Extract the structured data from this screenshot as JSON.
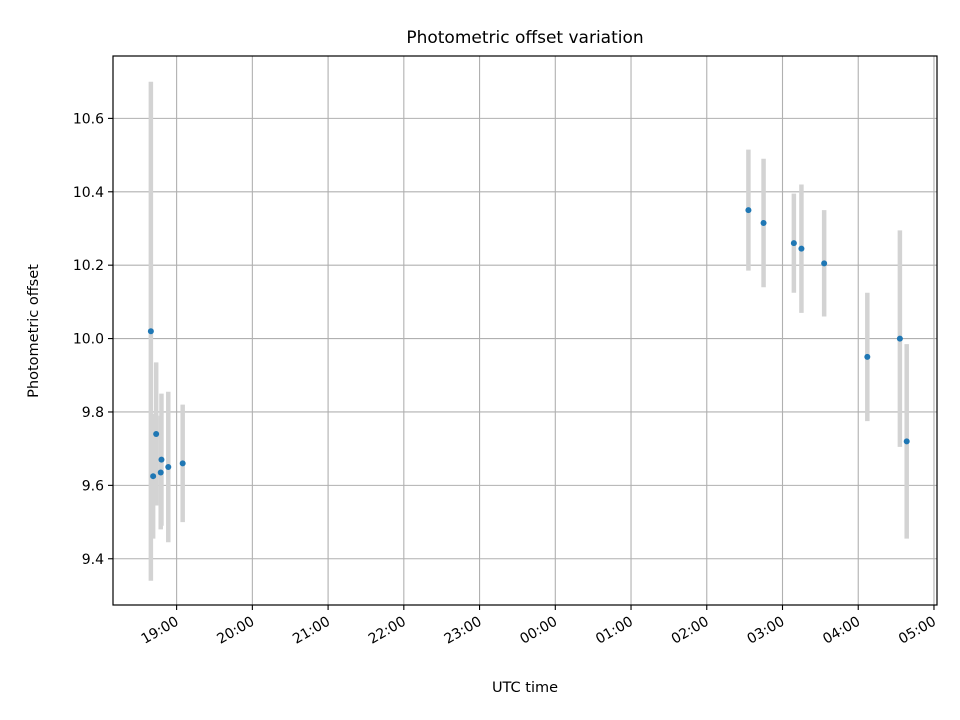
{
  "chart_data": {
    "type": "scatter",
    "title": "Photometric offset variation",
    "xlabel": "UTC time",
    "ylabel": "Photometric offset",
    "x_unit": "hours after 19:00 UTC (times past midnight continue beyond 5)",
    "xlim": [
      -0.84,
      10.04
    ],
    "ylim": [
      9.274,
      10.77
    ],
    "x_ticks": [
      {
        "value": 0,
        "label": "19:00"
      },
      {
        "value": 1,
        "label": "20:00"
      },
      {
        "value": 2,
        "label": "21:00"
      },
      {
        "value": 3,
        "label": "22:00"
      },
      {
        "value": 4,
        "label": "23:00"
      },
      {
        "value": 5,
        "label": "00:00"
      },
      {
        "value": 6,
        "label": "01:00"
      },
      {
        "value": 7,
        "label": "02:00"
      },
      {
        "value": 8,
        "label": "03:00"
      },
      {
        "value": 9,
        "label": "04:00"
      },
      {
        "value": 10,
        "label": "05:00"
      }
    ],
    "y_ticks": [
      {
        "value": 9.4,
        "label": "9.4"
      },
      {
        "value": 9.6,
        "label": "9.6"
      },
      {
        "value": 9.8,
        "label": "9.8"
      },
      {
        "value": 10.0,
        "label": "10.0"
      },
      {
        "value": 10.2,
        "label": "10.2"
      },
      {
        "value": 10.4,
        "label": "10.4"
      },
      {
        "value": 10.6,
        "label": "10.6"
      }
    ],
    "grid": true,
    "marker_color": "#1f77b4",
    "errorbar_color": "#d3d3d3",
    "points": [
      {
        "x": -0.34,
        "y": 10.02,
        "err": 0.68
      },
      {
        "x": -0.31,
        "y": 9.625,
        "err": 0.17
      },
      {
        "x": -0.27,
        "y": 9.74,
        "err": 0.195
      },
      {
        "x": -0.2,
        "y": 9.67,
        "err": 0.18
      },
      {
        "x": -0.21,
        "y": 9.635,
        "err": 0.155
      },
      {
        "x": -0.11,
        "y": 9.65,
        "err": 0.205
      },
      {
        "x": 0.08,
        "y": 9.66,
        "err": 0.16
      },
      {
        "x": 7.55,
        "y": 10.35,
        "err": 0.165
      },
      {
        "x": 7.75,
        "y": 10.315,
        "err": 0.175
      },
      {
        "x": 8.15,
        "y": 10.26,
        "err": 0.135
      },
      {
        "x": 8.25,
        "y": 10.245,
        "err": 0.175
      },
      {
        "x": 8.55,
        "y": 10.205,
        "err": 0.145
      },
      {
        "x": 9.12,
        "y": 9.95,
        "err": 0.175
      },
      {
        "x": 9.55,
        "y": 10.0,
        "err": 0.295
      },
      {
        "x": 9.64,
        "y": 9.72,
        "err": 0.265
      }
    ]
  }
}
